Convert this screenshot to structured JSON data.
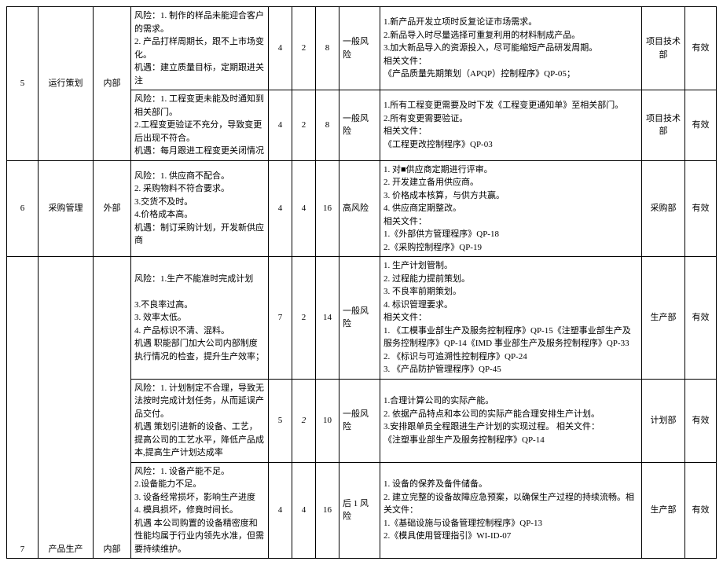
{
  "rows": [
    {
      "idx": "",
      "proc": "",
      "type": "",
      "risk": "风险：1. 制作的样品未能迎合客户的需求。\n2. 产品打样周期长，跟不上市场变化。\n机遇：建立质量目标，定期跟进关注",
      "n1": "4",
      "n2": "2",
      "n3": "8",
      "lvl": "一般风险",
      "measure": "1.新产品开发立项时反复论证市场需求。\n2.新品导入时尽量选择可重复利用的材料制成产品。\n3.加大新品导入的资源投入，尽可能缩短产品研发周期。\n相关文件：\n《产品质量先期策划（APQP）控制程序》QP-05；",
      "dept": "项目技术部",
      "stat": "有效"
    },
    {
      "idx": "5",
      "proc": "运行策划",
      "type": "内部",
      "risk": "风险：1. 工程变更未能及时通知到相关部门。\n2.工程变更验证不充分，导致变更后出现不符合。\n机遇：每月跟进工程变更关闭情况",
      "n1": "4",
      "n2": "2",
      "n3": "8",
      "lvl": "一般风险",
      "measure": "1.所有工程变更需要及时下发《工程变更通知单》至相关部门。\n2.所有变更需要验证。\n相关文件：\n《工程更改控制程序》QP-03",
      "dept": "项目技术部",
      "stat": "有效"
    },
    {
      "idx": "6",
      "proc": "采购管理",
      "type": "外部",
      "risk": "风险：1. 供应商不配合。\n2. 采购物料不符合要求。\n3.交货不及时。\n4.价格成本高。\n机遇：制订采购计划，开发新供应商",
      "n1": "4",
      "n2": "4",
      "n3": "16",
      "lvl": "高风险",
      "measure": "1. 对■供应商定期进行评审。\n2. 开发建立备用供应商。\n3. 价格成本核算，与供方共赢。\n4. 供应商定期整改。\n相关文件：\n1.《外部供方管理程序》QP-18\n2.《采购控制程序》QP-19",
      "dept": "采购部",
      "stat": "有效"
    },
    {
      "idx": "",
      "proc": "",
      "type": "",
      "risk": "风险：1.生产不能准时完成计划\n\n3.不良率过高。\n3. 效率太低。\n4. 产品标识不清、混料。\n机遇 职能部门加大公司内部制度执行情况的检查，提升生产效率；",
      "n1": "7",
      "n2": "2",
      "n3": "14",
      "lvl": "一般风险",
      "measure": "1. 生产计划管制。\n2. 过程能力提前策划。\n3. 不良率前期策划。\n4. 标识管理要求。\n相关文件：\n1. 《工模事业部生产及服务控制程序》QP-15《注塑事业部生产及服务控制程序》QP-14《IMD 事业部生产及服务控制程序》QP-33\n2. 《标识与可追溯性控制程序》QP-24\n3. 《产品防护管理程序》QP-45",
      "dept": "生产部",
      "stat": "有效"
    },
    {
      "idx": "",
      "proc": "",
      "type": "",
      "risk": "风险：1. 计划制定不合理，导致无法按时完成计划任务，从而延误产品交付。\n机遇 策划引进新的设备、工艺，提高公司的工艺水平，降低产品成本,提高生产计划达成率",
      "n1": "5",
      "n2": "2",
      "n3": "10",
      "lvl": "一般风险",
      "measure": "1.合理计算公司的实际产能。\n2. 依据产品特点和本公司的实际产能合理安排生产计划。\n3.安排跟单员全程跟进生产计划的实现过程。                        相关文件：\n《注塑事业部生产及服务控制程序》QP-14",
      "dept": "计划部",
      "stat": "有效",
      "n2_italic": true
    },
    {
      "idx": "7",
      "proc": "产品生产",
      "type": "内部",
      "risk": "风险：1. 设备产能不足。\n2.设备能力不足。\n3. 设备经常损坏，影响生产进度\n4. 模具损坏，修竟时间长。\n机遇 本公司购置的设备精密度和性能均属于行业内领先水准，但需要持续维护。",
      "n1": "4",
      "n2": "4",
      "n3": "16",
      "lvl": "后 1 风险",
      "measure": "1. 设备的保养及备件储备。\n2. 建立完整的设备故障应急预案，以确保生产过程的持续流畅。相关文件：\n1.《基础设施与设备管理控制程序》QP-13\n2.《模具使用管理指引》WI-ID-07",
      "dept": "生产部",
      "stat": "有效",
      "idx_valign": "bottom",
      "proc_valign": "bottom",
      "type_valign": "bottom"
    }
  ]
}
